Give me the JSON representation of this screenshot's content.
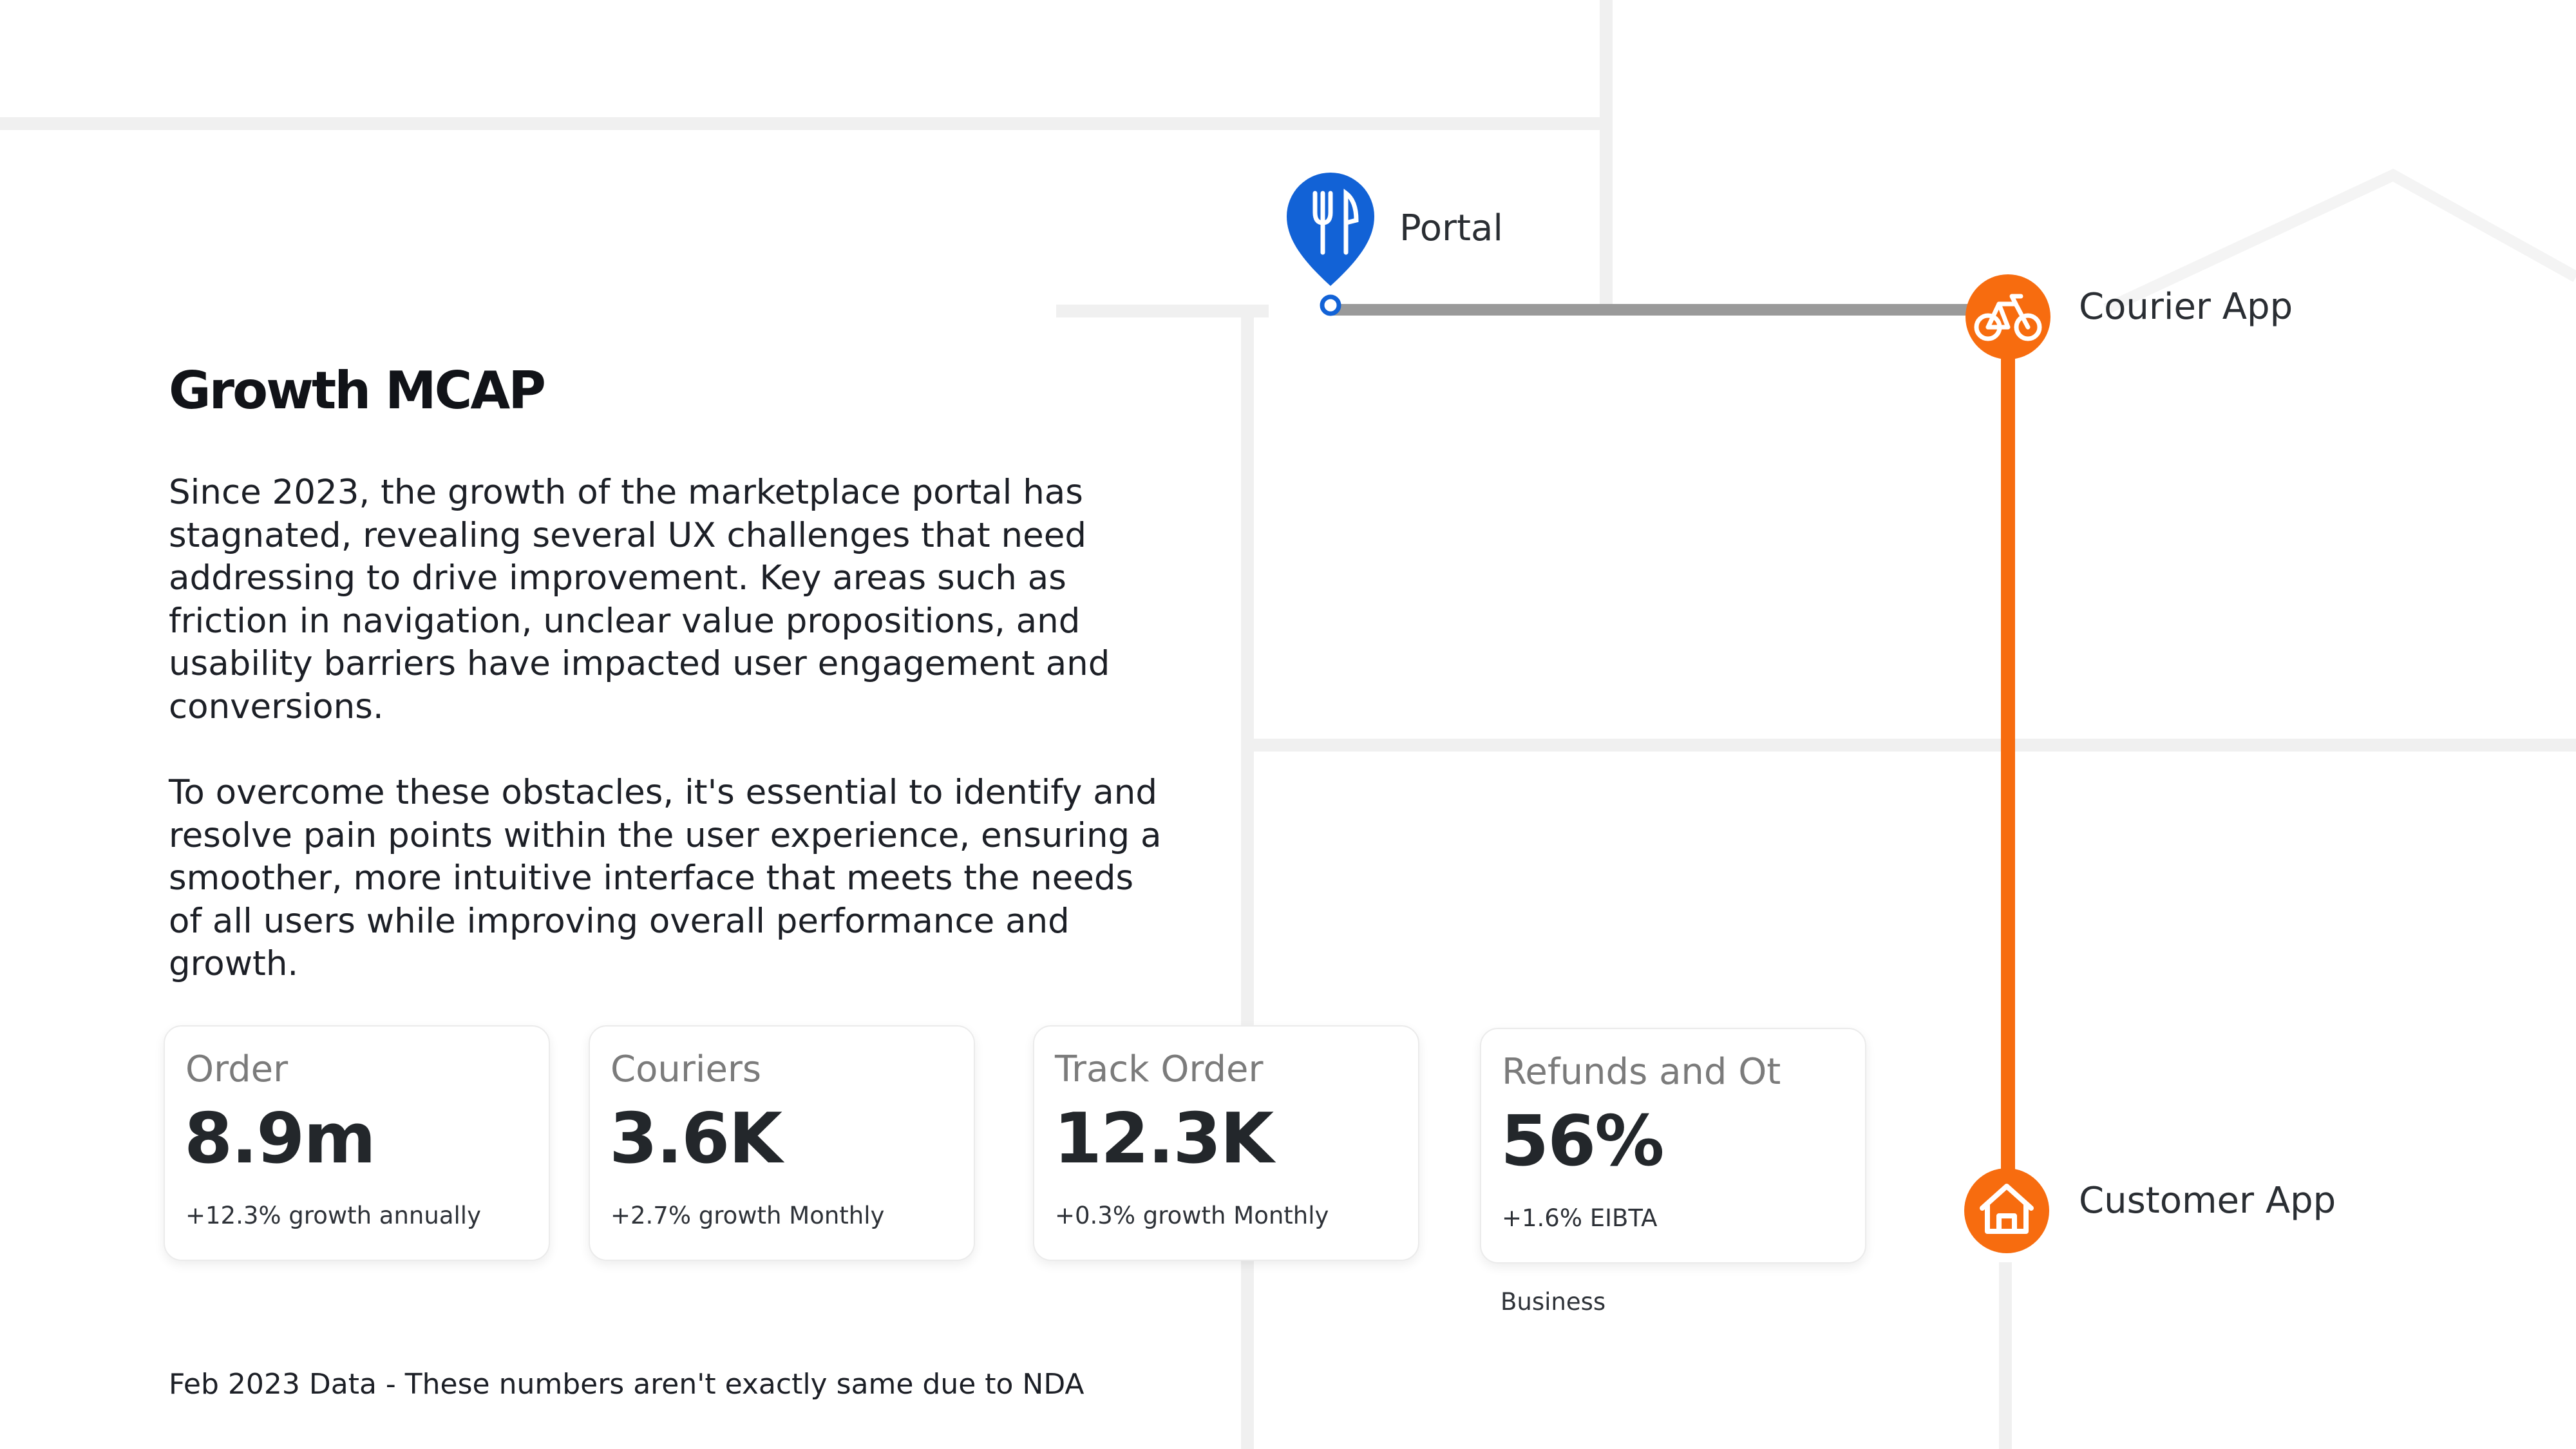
{
  "header": {
    "title": "Growth MCAP"
  },
  "description": {
    "paragraph_1": "Since 2023, the growth of the marketplace portal has stagnated, revealing several UX challenges that need addressing to drive improvement. Key areas such as friction in navigation, unclear value propositions, and usability barriers have impacted user engagement and conversions.",
    "paragraph_2": "To overcome these obstacles, it's essential to identify and resolve pain points within the user experience, ensuring a smoother, more intuitive interface that meets the needs of all users while improving overall performance and growth."
  },
  "metrics": [
    {
      "label": "Order",
      "value": "8.9m",
      "sub": "+12.3% growth annually"
    },
    {
      "label": "Couriers",
      "value": "3.6K",
      "sub": "+2.7% growth Monthly"
    },
    {
      "label": "Track Order",
      "value": "12.3K",
      "sub": "+0.3% growth Monthly"
    },
    {
      "label": "Refunds and Ot",
      "value": "56%",
      "sub": "+1.6% EIBTA",
      "extra": "Business"
    }
  ],
  "footnote": "Feb 2023 Data - These numbers aren't exactly same  due to NDA",
  "diagram": {
    "nodes": {
      "portal": {
        "label": "Portal",
        "icon": "fork-knife-icon"
      },
      "courier": {
        "label": "Courier App",
        "icon": "bicycle-icon"
      },
      "customer": {
        "label": "Customer App",
        "icon": "home-icon"
      }
    }
  },
  "colors": {
    "accent_orange": "#f76c0f",
    "portal_blue": "#1262d6",
    "route_gray": "#9a9a9a",
    "street_gray": "#f0f0f0"
  }
}
